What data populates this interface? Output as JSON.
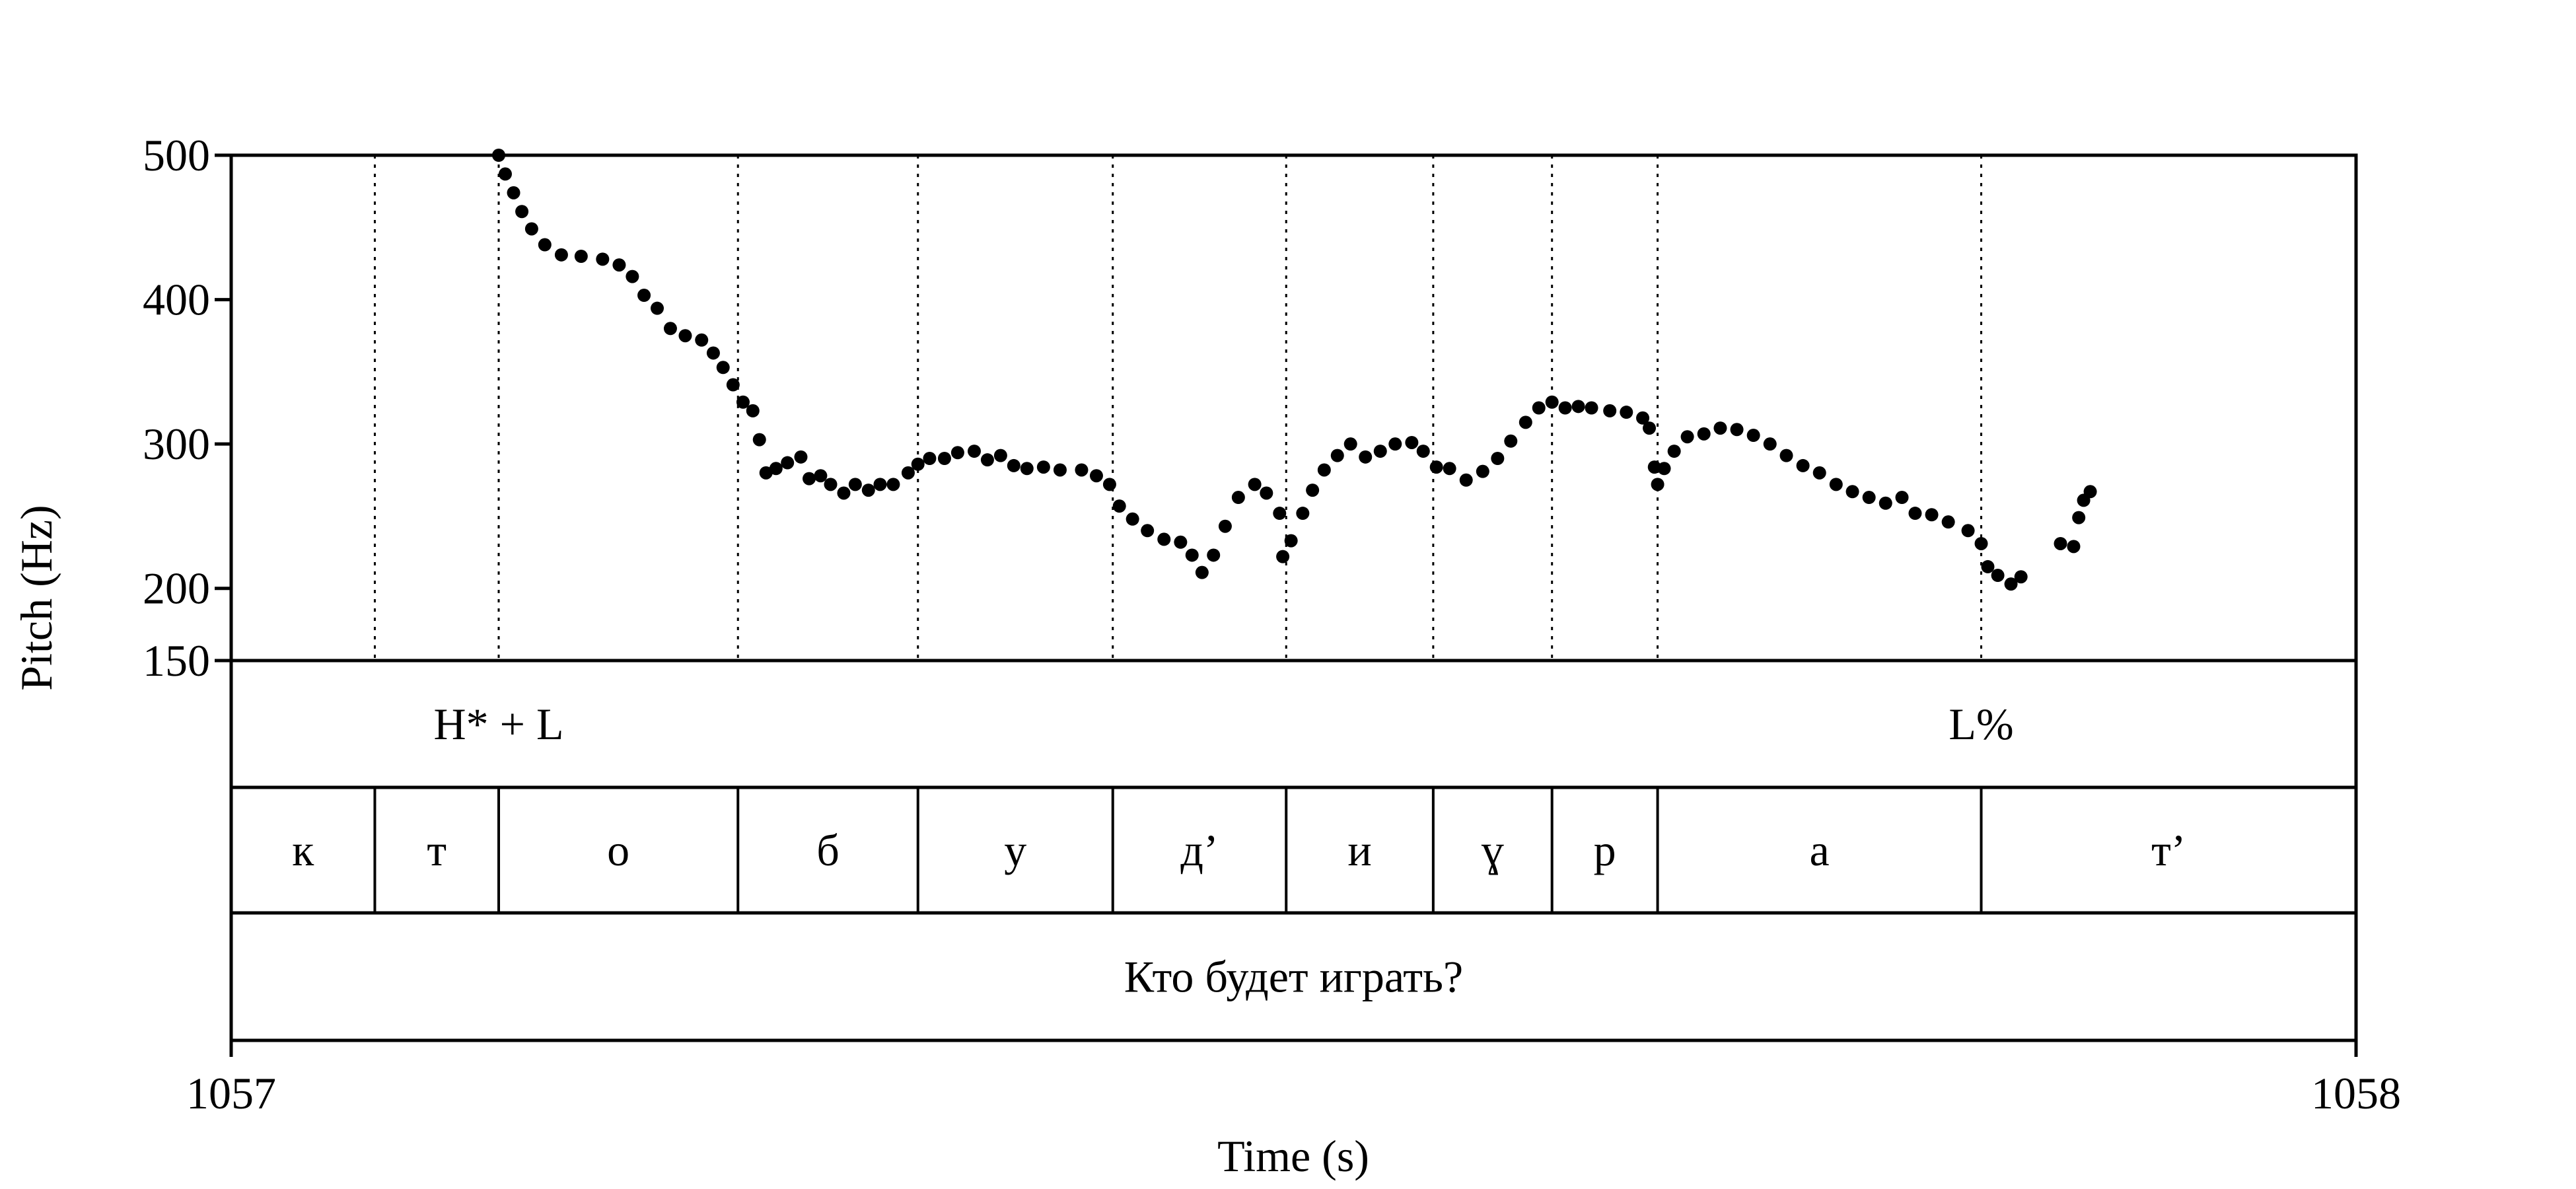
{
  "chart_data": {
    "type": "scatter",
    "y_label": "Pitch (Hz)",
    "x_label": "Time (s)",
    "color": "#000000",
    "xlim": [
      1057,
      1058
    ],
    "xticks": [
      1057,
      1058
    ],
    "ylim": [
      150,
      500
    ],
    "yticks": [
      500,
      400,
      300,
      200,
      150
    ],
    "x": [
      1057.1259,
      1057.129,
      1057.1329,
      1057.1368,
      1057.1414,
      1057.1476,
      1057.1554,
      1057.1647,
      1057.1748,
      1057.1826,
      1057.1888,
      1057.1943,
      1057.2005,
      1057.2067,
      1057.2137,
      1057.2214,
      1057.2269,
      1057.2315,
      1057.2362,
      1057.2409,
      1057.2455,
      1057.2486,
      1057.2517,
      1057.2564,
      1057.2618,
      1057.2681,
      1057.272,
      1057.2774,
      1057.2821,
      1057.2883,
      1057.2937,
      1057.2999,
      1057.3054,
      1057.3116,
      1057.3186,
      1057.3232,
      1057.3287,
      1057.3357,
      1057.3419,
      1057.3497,
      1057.3559,
      1057.3621,
      1057.3683,
      1057.3745,
      1057.3823,
      1057.3901,
      1057.4002,
      1057.4072,
      1057.4134,
      1057.418,
      1057.4242,
      1057.4312,
      1057.439,
      1057.4468,
      1057.4522,
      1057.4569,
      1057.4623,
      1057.4678,
      1057.474,
      1057.4817,
      1057.4872,
      1057.4934,
      1057.4949,
      1057.4988,
      1057.5043,
      1057.5089,
      1057.5144,
      1057.5206,
      1057.5268,
      1057.5338,
      1057.5408,
      1057.5478,
      1057.5556,
      1057.561,
      1057.5672,
      1057.5734,
      1057.5812,
      1057.589,
      1057.596,
      1057.6022,
      1057.6092,
      1057.6154,
      1057.6216,
      1057.6278,
      1057.634,
      1057.6402,
      1057.6488,
      1057.6566,
      1057.6643,
      1057.6674,
      1057.6698,
      1057.6713,
      1057.6744,
      1057.6791,
      1057.6853,
      1057.6931,
      1057.7008,
      1057.7086,
      1057.7164,
      1057.7242,
      1057.7319,
      1057.7397,
      1057.7475,
      1057.7553,
      1057.763,
      1057.7708,
      1057.7786,
      1057.7863,
      1057.7925,
      1057.8003,
      1057.8081,
      1057.8174,
      1057.8236,
      1057.8267,
      1057.8314,
      1057.8376,
      1057.8423,
      1057.8609,
      1057.8671,
      1057.8695,
      1057.8718,
      1057.8749
    ],
    "values": [
      500,
      487,
      474,
      461,
      449,
      438,
      431,
      430,
      428,
      424,
      416,
      403,
      394,
      380,
      375,
      372,
      363,
      353,
      341,
      329,
      323,
      303,
      280,
      283,
      287,
      291,
      276,
      278,
      272,
      266,
      272,
      268,
      272,
      272,
      280,
      286,
      290,
      290,
      294,
      295,
      289,
      292,
      285,
      283,
      284,
      282,
      282,
      278,
      272,
      257,
      248,
      240,
      234,
      232,
      223,
      211,
      223,
      243,
      263,
      272,
      266,
      252,
      222,
      233,
      252,
      268,
      282,
      292,
      300,
      291,
      295,
      300,
      301,
      295,
      284,
      283,
      275,
      281,
      290,
      302,
      315,
      325,
      329,
      325,
      326,
      325,
      323,
      322,
      318,
      311,
      284,
      272,
      283,
      295,
      305,
      307,
      311,
      310,
      306,
      300,
      292,
      285,
      280,
      272,
      267,
      263,
      259,
      263,
      252,
      251,
      246,
      240,
      231,
      215,
      209,
      203,
      208,
      231,
      229,
      249,
      261,
      267
    ],
    "tiers": [
      {
        "points": [
          {
            "time": 1057.1259,
            "label": "H* + L"
          },
          {
            "time": 1057.8236,
            "label": "L%"
          }
        ]
      },
      {
        "boundaries": [
          1057.0676,
          1057.1259,
          1057.2385,
          1057.3232,
          1057.4149,
          1057.4965,
          1057.5657,
          1057.6216,
          1057.6713,
          1057.8236
        ],
        "labels": [
          "к",
          "т",
          "о",
          "б",
          "у",
          "д’",
          "и",
          "ɣ",
          "р",
          "а",
          "т’"
        ]
      },
      {
        "boundaries": [],
        "labels": [
          "Кто будет играть?"
        ]
      }
    ]
  }
}
